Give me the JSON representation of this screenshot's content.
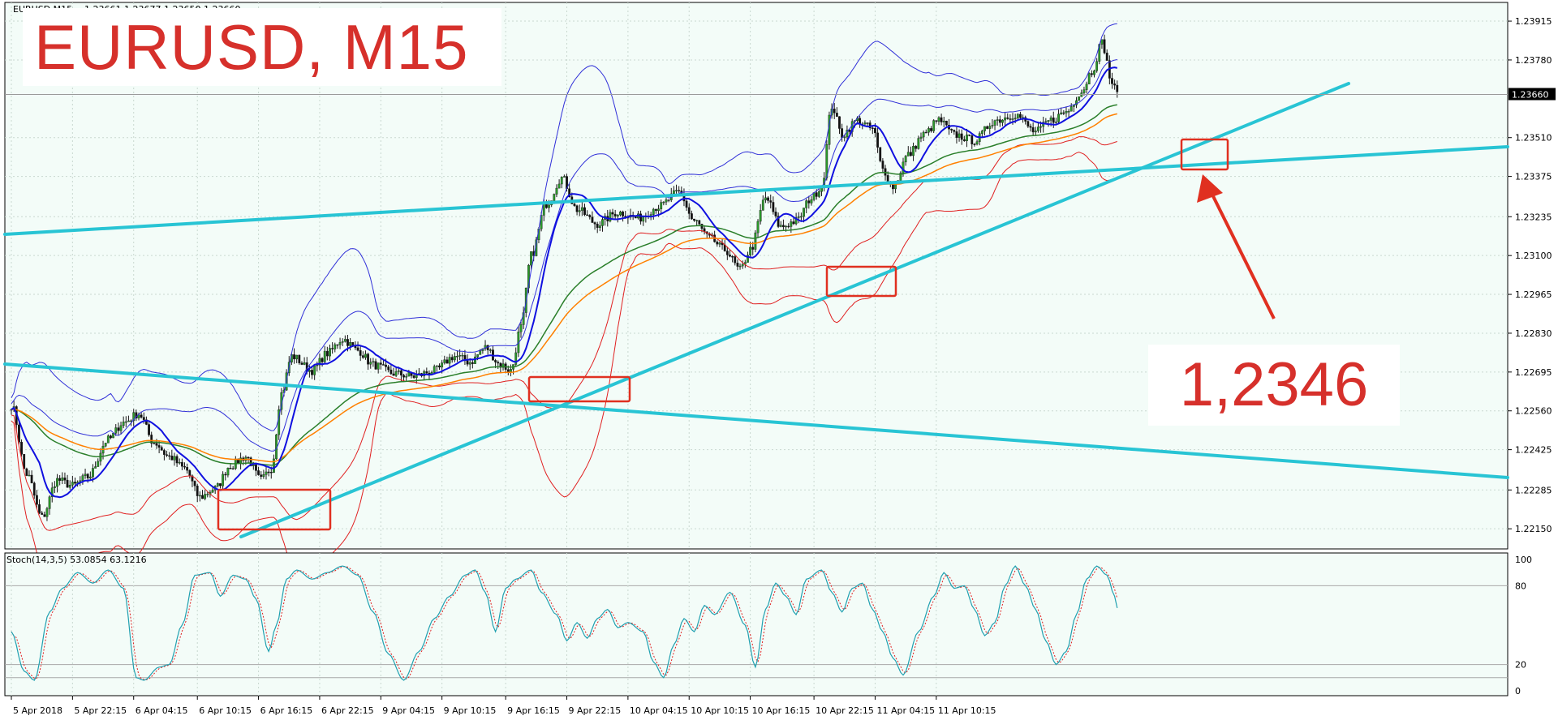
{
  "header": {
    "symbol_text": "EURUSD,M15",
    "ohlc_text": "1.23661 1.23677 1.23650 1.23660"
  },
  "overlay": {
    "title": "EURUSD, M15",
    "price_label": "1,2346"
  },
  "indicator": {
    "label": "Stoch(14,3,5) 53.0854 63.1216",
    "y_ticks": [
      "100",
      "80",
      "20",
      "0"
    ],
    "levels": [
      80,
      20,
      10
    ]
  },
  "colors": {
    "chart_bg": "#f3fcf8",
    "grid": "#c9d8d0",
    "candle": "#1a1a1a",
    "bull": "#2a9a2a",
    "bear": "#111111",
    "bb_upper": "#3030d8",
    "bb_lower": "#e02020",
    "ma_blue": "#1010e0",
    "ma_green": "#2a7f2a",
    "ma_orange": "#ff8000",
    "trendline": "#28c4d4",
    "highlight": "#e03020",
    "stoch_main": "#20a0b0",
    "stoch_signal": "#e02020",
    "price_tag_bg": "#000000"
  },
  "chart_data": {
    "type": "candlestick",
    "symbol": "EURUSD",
    "timeframe": "M15",
    "last_price": "1.23660",
    "y_ticks": [
      "1.23915",
      "1.23780",
      "1.23510",
      "1.23375",
      "1.23235",
      "1.23100",
      "1.22965",
      "1.22830",
      "1.22695",
      "1.22560",
      "1.22425",
      "1.22285",
      "1.22150"
    ],
    "ylim": [
      1.2208,
      1.2398
    ],
    "x_ticks": [
      "5 Apr 2018",
      "5 Apr 22:15",
      "6 Apr 04:15",
      "6 Apr 10:15",
      "6 Apr 16:15",
      "6 Apr 22:15",
      "9 Apr 04:15",
      "9 Apr 10:15",
      "9 Apr 16:15",
      "9 Apr 22:15",
      "10 Apr 04:15",
      "10 Apr 10:15",
      "10 Apr 16:15",
      "10 Apr 22:15",
      "11 Apr 04:15",
      "11 Apr 10:15"
    ],
    "price_anchors": [
      [
        0,
        1.2258
      ],
      [
        6,
        1.2234
      ],
      [
        12,
        1.2219
      ],
      [
        18,
        1.2232
      ],
      [
        24,
        1.223
      ],
      [
        30,
        1.2233
      ],
      [
        38,
        1.2246
      ],
      [
        44,
        1.2252
      ],
      [
        50,
        1.2255
      ],
      [
        56,
        1.2245
      ],
      [
        62,
        1.224
      ],
      [
        68,
        1.2236
      ],
      [
        74,
        1.2226
      ],
      [
        80,
        1.2229
      ],
      [
        86,
        1.2237
      ],
      [
        92,
        1.224
      ],
      [
        98,
        1.2232
      ],
      [
        102,
        1.2236
      ],
      [
        106,
        1.2262
      ],
      [
        110,
        1.2275
      ],
      [
        118,
        1.227
      ],
      [
        124,
        1.2276
      ],
      [
        130,
        1.2281
      ],
      [
        136,
        1.2277
      ],
      [
        142,
        1.2272
      ],
      [
        150,
        1.2269
      ],
      [
        158,
        1.2268
      ],
      [
        166,
        1.227
      ],
      [
        174,
        1.2275
      ],
      [
        180,
        1.2273
      ],
      [
        186,
        1.2278
      ],
      [
        192,
        1.2272
      ],
      [
        196,
        1.227
      ],
      [
        200,
        1.2285
      ],
      [
        204,
        1.231
      ],
      [
        210,
        1.2328
      ],
      [
        216,
        1.2337
      ],
      [
        222,
        1.2326
      ],
      [
        230,
        1.2321
      ],
      [
        238,
        1.2325
      ],
      [
        246,
        1.2323
      ],
      [
        254,
        1.2327
      ],
      [
        262,
        1.2332
      ],
      [
        268,
        1.2322
      ],
      [
        274,
        1.2316
      ],
      [
        280,
        1.2312
      ],
      [
        286,
        1.2305
      ],
      [
        290,
        1.2312
      ],
      [
        296,
        1.233
      ],
      [
        302,
        1.232
      ],
      [
        308,
        1.2322
      ],
      [
        314,
        1.233
      ],
      [
        318,
        1.2334
      ],
      [
        322,
        1.2362
      ],
      [
        326,
        1.2352
      ],
      [
        332,
        1.2357
      ],
      [
        338,
        1.2354
      ],
      [
        342,
        1.234
      ],
      [
        346,
        1.2334
      ],
      [
        352,
        1.2345
      ],
      [
        358,
        1.2352
      ],
      [
        364,
        1.2357
      ],
      [
        370,
        1.2352
      ],
      [
        378,
        1.235
      ],
      [
        386,
        1.2357
      ],
      [
        394,
        1.2359
      ],
      [
        402,
        1.2353
      ],
      [
        408,
        1.2357
      ],
      [
        414,
        1.236
      ],
      [
        420,
        1.2367
      ],
      [
        424,
        1.2374
      ],
      [
        428,
        1.2384
      ],
      [
        432,
        1.237
      ],
      [
        434,
        1.2366
      ]
    ],
    "stoch_anchors": [
      [
        0,
        45
      ],
      [
        5,
        15
      ],
      [
        9,
        8
      ],
      [
        15,
        60
      ],
      [
        20,
        78
      ],
      [
        26,
        90
      ],
      [
        32,
        82
      ],
      [
        38,
        92
      ],
      [
        44,
        78
      ],
      [
        49,
        10
      ],
      [
        52,
        8
      ],
      [
        58,
        18
      ],
      [
        62,
        20
      ],
      [
        67,
        50
      ],
      [
        72,
        88
      ],
      [
        78,
        90
      ],
      [
        82,
        72
      ],
      [
        87,
        88
      ],
      [
        92,
        85
      ],
      [
        96,
        70
      ],
      [
        101,
        30
      ],
      [
        104,
        50
      ],
      [
        108,
        85
      ],
      [
        112,
        92
      ],
      [
        118,
        85
      ],
      [
        124,
        90
      ],
      [
        130,
        95
      ],
      [
        136,
        88
      ],
      [
        142,
        60
      ],
      [
        148,
        28
      ],
      [
        154,
        8
      ],
      [
        160,
        30
      ],
      [
        166,
        55
      ],
      [
        172,
        72
      ],
      [
        178,
        88
      ],
      [
        182,
        92
      ],
      [
        186,
        75
      ],
      [
        190,
        45
      ],
      [
        194,
        78
      ],
      [
        198,
        85
      ],
      [
        204,
        92
      ],
      [
        208,
        75
      ],
      [
        214,
        58
      ],
      [
        218,
        38
      ],
      [
        222,
        52
      ],
      [
        226,
        40
      ],
      [
        230,
        55
      ],
      [
        234,
        62
      ],
      [
        238,
        48
      ],
      [
        242,
        52
      ],
      [
        248,
        45
      ],
      [
        252,
        22
      ],
      [
        256,
        10
      ],
      [
        260,
        35
      ],
      [
        264,
        55
      ],
      [
        268,
        45
      ],
      [
        272,
        65
      ],
      [
        276,
        58
      ],
      [
        282,
        75
      ],
      [
        288,
        50
      ],
      [
        292,
        18
      ],
      [
        296,
        62
      ],
      [
        300,
        82
      ],
      [
        304,
        72
      ],
      [
        308,
        58
      ],
      [
        312,
        85
      ],
      [
        318,
        92
      ],
      [
        322,
        75
      ],
      [
        326,
        60
      ],
      [
        330,
        78
      ],
      [
        334,
        82
      ],
      [
        338,
        62
      ],
      [
        342,
        45
      ],
      [
        346,
        25
      ],
      [
        350,
        12
      ],
      [
        356,
        45
      ],
      [
        362,
        72
      ],
      [
        366,
        90
      ],
      [
        370,
        78
      ],
      [
        374,
        80
      ],
      [
        378,
        62
      ],
      [
        382,
        42
      ],
      [
        386,
        52
      ],
      [
        390,
        80
      ],
      [
        394,
        95
      ],
      [
        398,
        80
      ],
      [
        402,
        62
      ],
      [
        406,
        38
      ],
      [
        410,
        20
      ],
      [
        414,
        30
      ],
      [
        418,
        58
      ],
      [
        422,
        85
      ],
      [
        426,
        95
      ],
      [
        430,
        88
      ],
      [
        433,
        72
      ],
      [
        434,
        63
      ]
    ]
  }
}
